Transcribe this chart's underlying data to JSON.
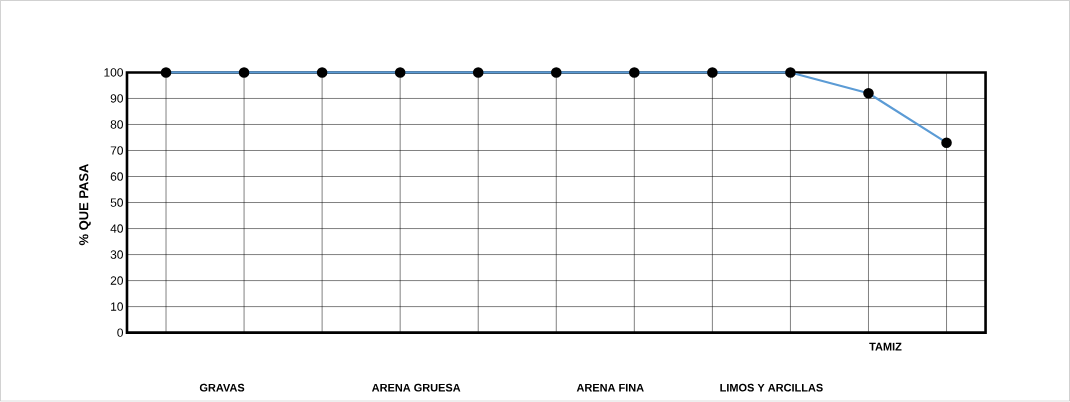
{
  "chart_data": {
    "type": "line",
    "categories": [
      null,
      null,
      null,
      null,
      null,
      null,
      null,
      null,
      null,
      null,
      null
    ],
    "series": [
      {
        "color": "#5b9bd5",
        "values": [
          100,
          100,
          100,
          100,
          100,
          100,
          100,
          100,
          100,
          92,
          73
        ]
      }
    ],
    "ylim": [
      0,
      100
    ],
    "yticks": [
      0,
      10,
      20,
      30,
      40,
      50,
      60,
      70,
      80,
      90,
      100
    ],
    "grid": true,
    "marker": "circle",
    "line_style": "solid",
    "xlabel": "TAMIZ",
    "ylabel": "% QUE PASA",
    "annotations": [
      "GRAVAS",
      "ARENA GRUESA",
      "ARENA FINA",
      "LIMOS Y ARCILLAS"
    ]
  }
}
